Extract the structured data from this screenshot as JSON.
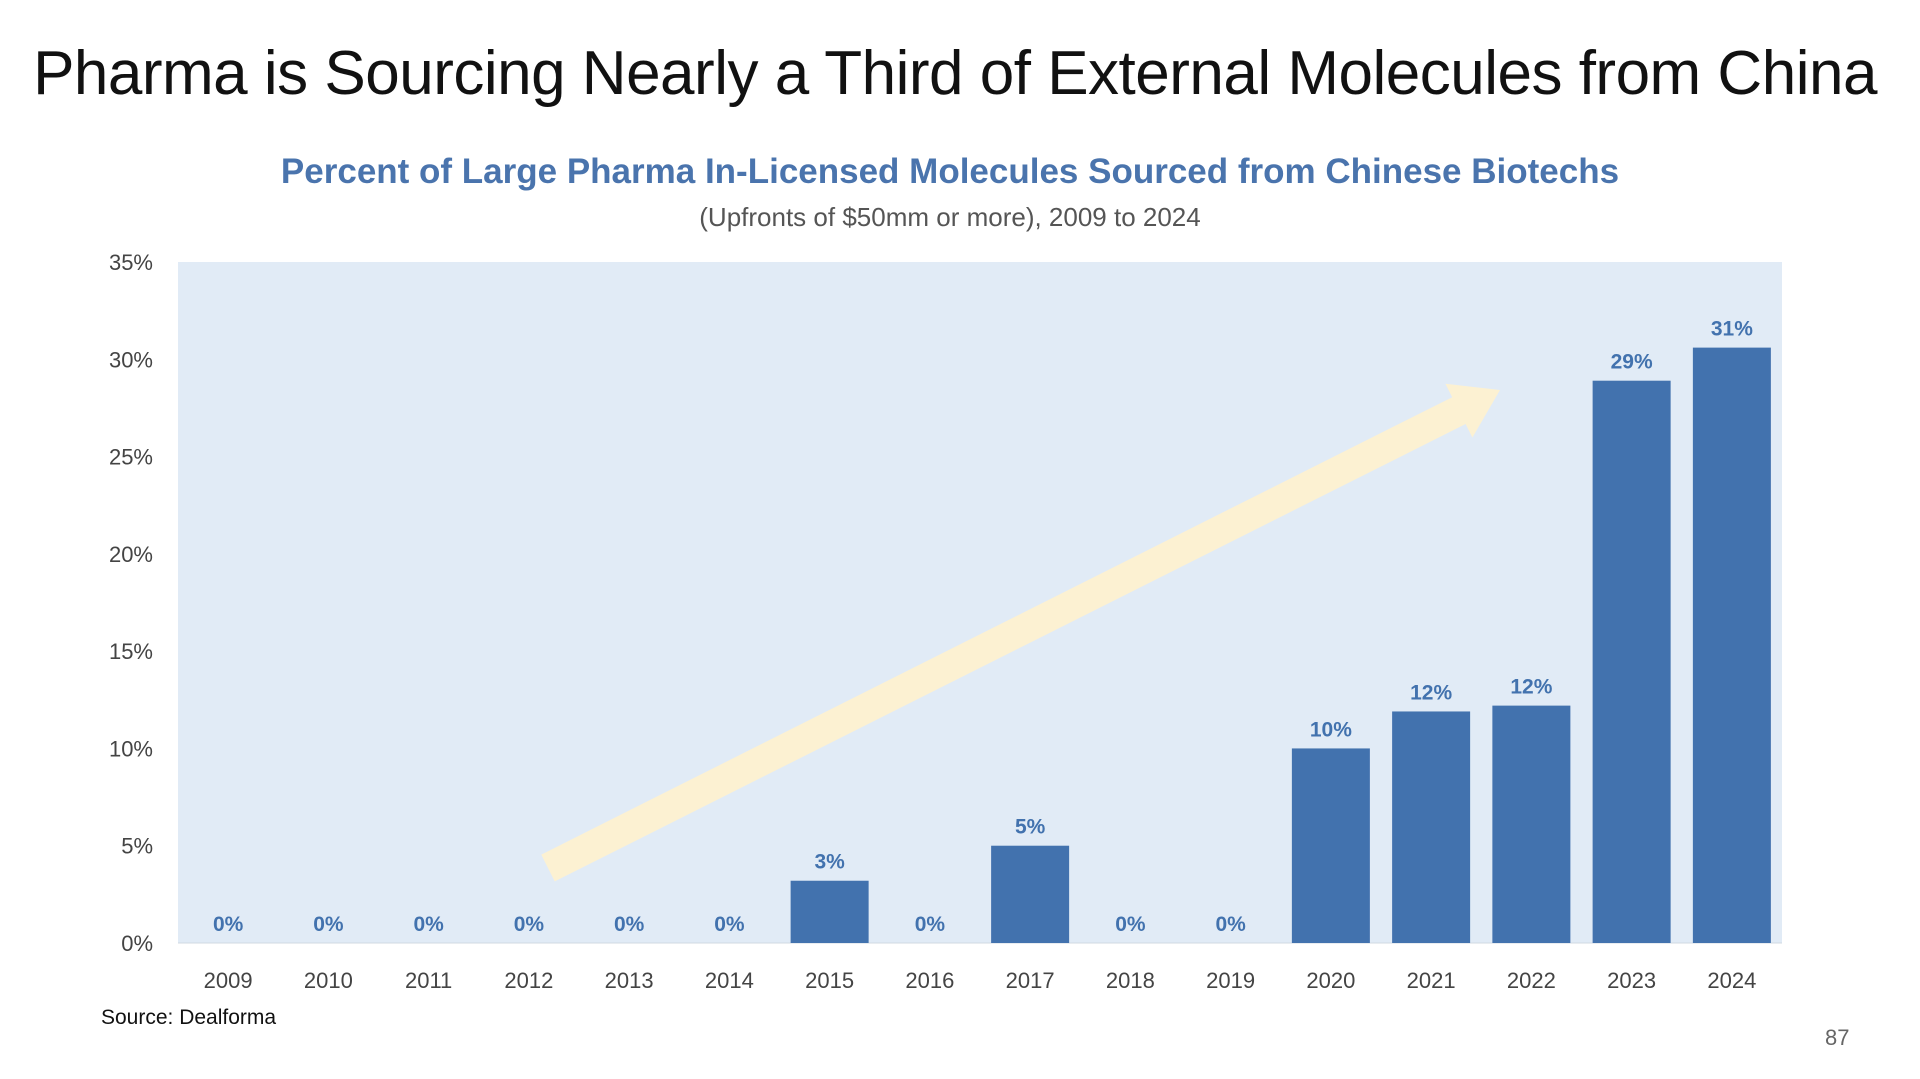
{
  "slide": {
    "title": "Pharma is Sourcing Nearly a Third of External Molecules from China",
    "source": "Source: Dealforma",
    "page_number": "87"
  },
  "chart_data": {
    "type": "bar",
    "title": "Percent of Large Pharma In-Licensed Molecules Sourced from Chinese Biotechs",
    "subtitle": "(Upfronts of $50mm or more), 2009 to 2024",
    "xlabel": "",
    "ylabel": "",
    "categories": [
      "2009",
      "2010",
      "2011",
      "2012",
      "2013",
      "2014",
      "2015",
      "2016",
      "2017",
      "2018",
      "2019",
      "2020",
      "2021",
      "2022",
      "2023",
      "2024"
    ],
    "values": [
      0,
      0,
      0,
      0,
      0,
      0,
      3.2,
      0,
      5.0,
      0,
      0,
      10.0,
      11.9,
      12.2,
      28.9,
      30.6
    ],
    "data_labels": [
      "0%",
      "0%",
      "0%",
      "0%",
      "0%",
      "0%",
      "3%",
      "0%",
      "5%",
      "0%",
      "0%",
      "10%",
      "12%",
      "12%",
      "29%",
      "31%"
    ],
    "ylim": [
      0,
      35
    ],
    "yticks": [
      0,
      5,
      10,
      15,
      20,
      25,
      30,
      35
    ],
    "ytick_labels": [
      "0%",
      "5%",
      "10%",
      "15%",
      "20%",
      "25%",
      "30%",
      "35%"
    ],
    "grid": false,
    "legend": "none",
    "annotation": "upward trend arrow",
    "colors": {
      "bar": "#4272ae",
      "plot_background": "#e1ebf6",
      "label": "#4272ae",
      "arrow": "#fcf1d2",
      "title": "#4a74ad"
    }
  }
}
